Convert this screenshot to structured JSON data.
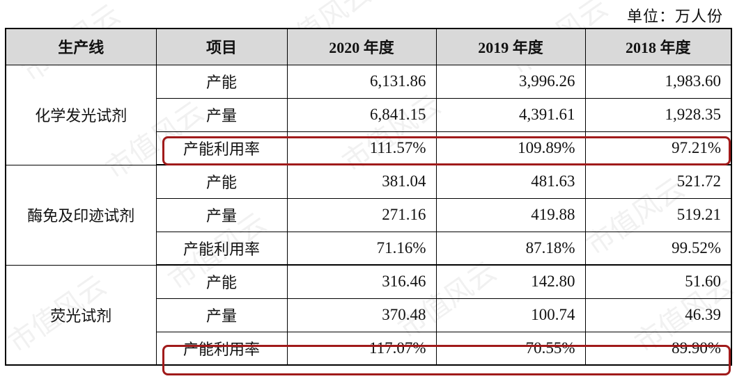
{
  "unit_label": "单位：万人份",
  "headers": [
    "生产线",
    "项目",
    "2020 年度",
    "2019 年度",
    "2018 年度"
  ],
  "groups": [
    {
      "line": "化学发光试剂",
      "rows": [
        {
          "item": "产能",
          "v2020": "6,131.86",
          "v2019": "3,996.26",
          "v2018": "1,983.60"
        },
        {
          "item": "产量",
          "v2020": "6,841.15",
          "v2019": "4,391.61",
          "v2018": "1,928.35"
        },
        {
          "item": "产能利用率",
          "v2020": "111.57%",
          "v2019": "109.89%",
          "v2018": "97.21%"
        }
      ]
    },
    {
      "line": "酶免及印迹试剂",
      "rows": [
        {
          "item": "产能",
          "v2020": "381.04",
          "v2019": "481.63",
          "v2018": "521.72"
        },
        {
          "item": "产量",
          "v2020": "271.16",
          "v2019": "419.88",
          "v2018": "519.21"
        },
        {
          "item": "产能利用率",
          "v2020": "71.16%",
          "v2019": "87.18%",
          "v2018": "99.52%"
        }
      ]
    },
    {
      "line": "荧光试剂",
      "rows": [
        {
          "item": "产能",
          "v2020": "316.46",
          "v2019": "142.80",
          "v2018": "51.60"
        },
        {
          "item": "产量",
          "v2020": "370.48",
          "v2019": "100.74",
          "v2018": "46.39"
        },
        {
          "item": "产能利用率",
          "v2020": "117.07%",
          "v2019": "70.55%",
          "v2018": "89.90%"
        }
      ]
    }
  ],
  "watermark": "市值风云",
  "highlight_color": "#a01a1a"
}
